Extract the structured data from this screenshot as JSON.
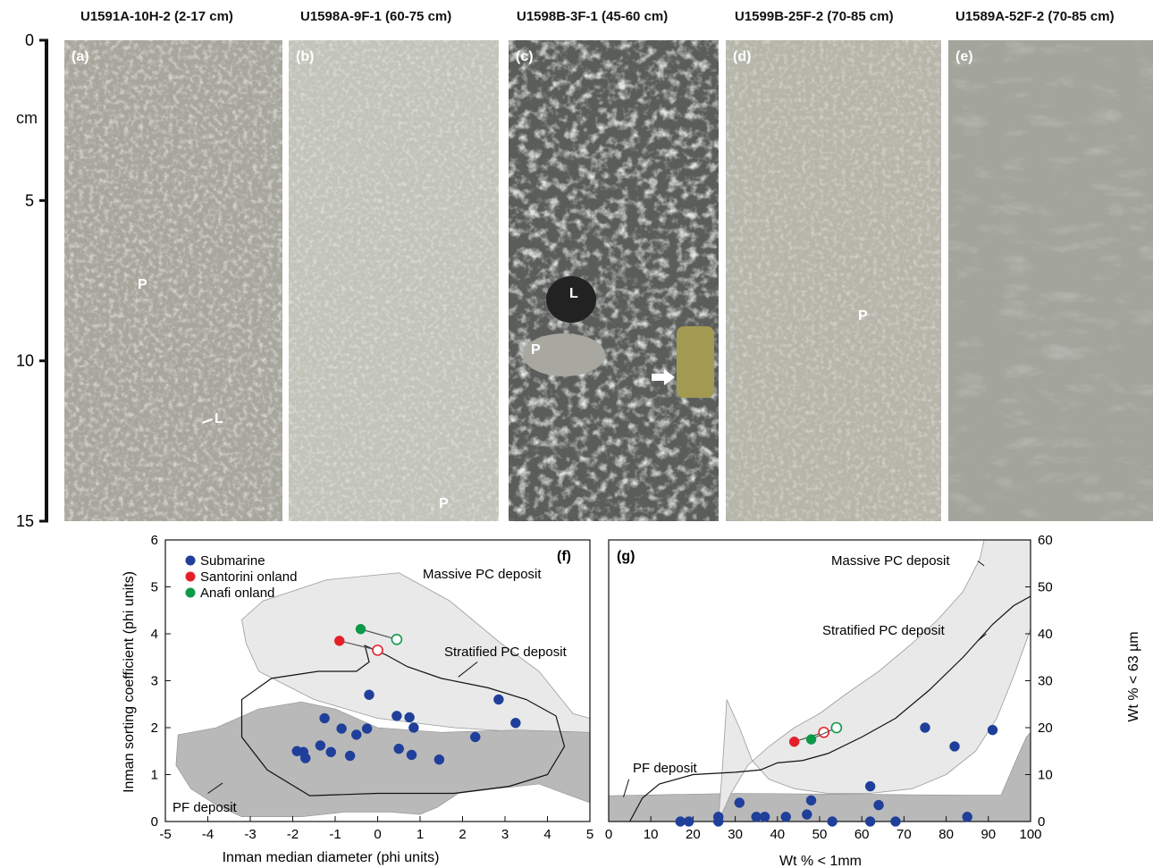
{
  "cores": [
    {
      "title": "U1591A-10H-2 (2-17 cm)",
      "letter": "(a)",
      "tone": "#a7a69c",
      "marks": [
        {
          "label": "P"
        },
        {
          "label": "L"
        }
      ]
    },
    {
      "title": "U1598A-9F-1 (60-75 cm)",
      "letter": "(b)",
      "tone": "#c2c3b9",
      "marks": [
        {
          "label": "P"
        }
      ]
    },
    {
      "title": "U1598B-3F-1 (45-60 cm)",
      "letter": "(c)",
      "tone": "#6e716c",
      "marks": [
        {
          "label": "L"
        },
        {
          "label": "P"
        }
      ]
    },
    {
      "title": "U1599B-25F-2 (70-85 cm)",
      "letter": "(d)",
      "tone": "#b5b5aa",
      "marks": [
        {
          "label": "P"
        }
      ]
    },
    {
      "title": "U1589A-52F-2 (70-85 cm)",
      "letter": "(e)",
      "tone": "#a3a49b",
      "marks": []
    }
  ],
  "depth_scale": {
    "unit": "cm",
    "ticks": [
      0,
      5,
      10,
      15
    ],
    "range": [
      0,
      15
    ]
  },
  "chart_data": [
    {
      "type": "scatter",
      "panel_label": "(f)",
      "xlabel": "Inman median diameter (phi units)",
      "ylabel": "Inman sorting coefficient (phi units)",
      "xlim": [
        -5,
        5
      ],
      "ylim": [
        0,
        6
      ],
      "xticks": [
        -5,
        -4,
        -3,
        -2,
        -1,
        0,
        1,
        2,
        3,
        4,
        5
      ],
      "yticks": [
        0,
        1,
        2,
        3,
        4,
        5,
        6
      ],
      "legend_position": "top-left",
      "legend": [
        {
          "label": "Submarine",
          "color": "#1f3f9a"
        },
        {
          "label": "Santorini onland",
          "color": "#e3202a"
        },
        {
          "label": "Anafi onland",
          "color": "#0a9a4a"
        }
      ],
      "fields": [
        {
          "label": "Massive PC deposit",
          "fill": "#e9e9e9"
        },
        {
          "label": "Stratified PC deposit",
          "fill": "none"
        },
        {
          "label": "PF deposit",
          "fill": "#b9b9b9"
        }
      ],
      "series": [
        {
          "name": "Submarine",
          "color": "#1f3f9a",
          "x": [
            -1.9,
            -1.75,
            -1.7,
            -1.35,
            -1.25,
            -1.1,
            -0.85,
            -0.65,
            -0.5,
            -0.25,
            -0.2,
            0.45,
            0.5,
            0.75,
            0.8,
            0.85,
            1.45,
            2.3,
            2.85,
            3.25
          ],
          "y": [
            1.5,
            1.48,
            1.35,
            1.62,
            2.2,
            1.48,
            1.98,
            1.4,
            1.85,
            1.98,
            2.7,
            2.25,
            1.55,
            2.22,
            1.42,
            2.0,
            1.32,
            1.8,
            2.6,
            2.1
          ]
        },
        {
          "name": "Santorini onland",
          "color": "#e3202a",
          "x": [
            -0.9,
            0.0
          ],
          "y": [
            3.85,
            3.65
          ],
          "open": [
            false,
            true
          ]
        },
        {
          "name": "Anafi onland",
          "color": "#0a9a4a",
          "x": [
            -0.4,
            0.45
          ],
          "y": [
            4.1,
            3.88
          ],
          "open": [
            false,
            true
          ]
        }
      ]
    },
    {
      "type": "scatter",
      "panel_label": "(g)",
      "xlabel": "Wt % < 1mm",
      "ylabel": "Wt % < 63 µm",
      "xlim": [
        0,
        100
      ],
      "ylim": [
        0,
        60
      ],
      "xticks": [
        0,
        10,
        20,
        30,
        40,
        50,
        60,
        70,
        80,
        90,
        100
      ],
      "yticks": [
        0,
        10,
        20,
        30,
        40,
        50,
        60
      ],
      "fields": [
        {
          "label": "Massive PC deposit",
          "fill": "#e9e9e9"
        },
        {
          "label": "Stratified PC deposit",
          "fill": "none"
        },
        {
          "label": "PF deposit",
          "fill": "#b9b9b9"
        }
      ],
      "series": [
        {
          "name": "Submarine",
          "color": "#1f3f9a",
          "x": [
            17,
            19,
            26,
            26,
            31,
            35,
            37,
            42,
            47,
            48,
            53,
            62,
            62,
            64,
            68,
            75,
            82,
            85,
            91
          ],
          "y": [
            0,
            0,
            0,
            1,
            4,
            1,
            1,
            1,
            1.5,
            4.5,
            0,
            0,
            7.5,
            3.5,
            0,
            20,
            16,
            1,
            19.5
          ]
        },
        {
          "name": "Santorini onland",
          "color": "#e3202a",
          "x": [
            44,
            51
          ],
          "y": [
            17,
            19
          ],
          "open": [
            false,
            true
          ]
        },
        {
          "name": "Anafi onland",
          "color": "#0a9a4a",
          "x": [
            48,
            54
          ],
          "y": [
            17.5,
            20
          ],
          "open": [
            false,
            true
          ]
        }
      ]
    }
  ]
}
